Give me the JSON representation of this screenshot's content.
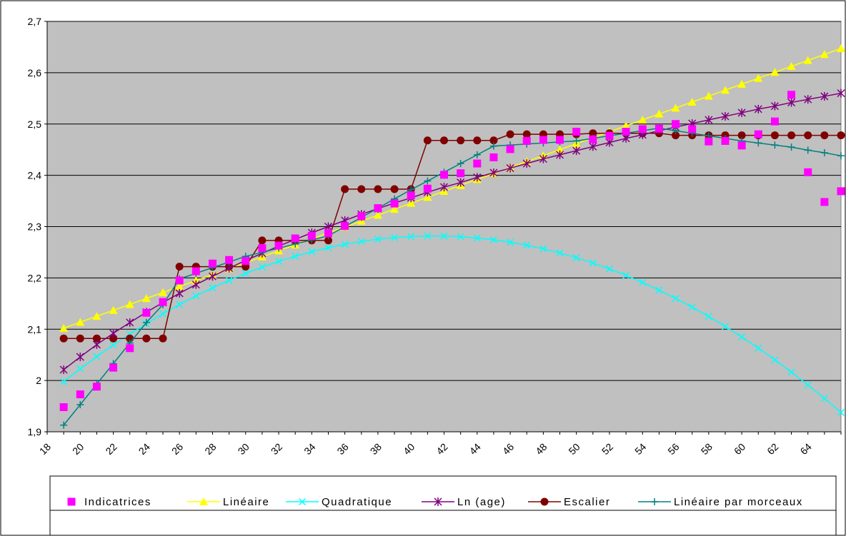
{
  "chart_data": {
    "type": "line",
    "title": "",
    "xlabel": "",
    "ylabel": "",
    "xlim": [
      18,
      66
    ],
    "ylim": [
      1.9,
      2.7
    ],
    "x_ticks": [
      18,
      20,
      22,
      24,
      26,
      28,
      30,
      32,
      34,
      36,
      38,
      40,
      42,
      44,
      46,
      48,
      50,
      52,
      54,
      56,
      58,
      60,
      62,
      64
    ],
    "x_tick_labels": [
      "18",
      "20",
      "22",
      "24",
      "26",
      "28",
      "30",
      "32",
      "34",
      "36",
      "38",
      "40",
      "42",
      "44",
      "46",
      "48",
      "50",
      "52",
      "54",
      "56",
      "58",
      "60",
      "62",
      "64"
    ],
    "y_ticks": [
      1.9,
      2.0,
      2.1,
      2.2,
      2.3,
      2.4,
      2.5,
      2.6,
      2.7
    ],
    "y_tick_labels": [
      "1,9",
      "2",
      "2,1",
      "2,2",
      "2,3",
      "2,4",
      "2,5",
      "2,6",
      "2,7"
    ],
    "plot_background": "#c0c0c0",
    "grid": "horizontal",
    "legend_position": "bottom",
    "x": [
      19,
      20,
      21,
      22,
      23,
      24,
      25,
      26,
      27,
      28,
      29,
      30,
      31,
      32,
      33,
      34,
      35,
      36,
      37,
      38,
      39,
      40,
      41,
      42,
      43,
      44,
      45,
      46,
      47,
      48,
      49,
      50,
      51,
      52,
      53,
      54,
      55,
      56,
      57,
      58,
      59,
      60,
      61,
      62,
      63,
      64,
      65,
      66
    ],
    "series": [
      {
        "name": "Indicatrices",
        "color": "#ff00ff",
        "marker": "square",
        "line": false,
        "values": [
          1.948,
          1.973,
          1.988,
          2.025,
          2.063,
          2.132,
          2.153,
          2.195,
          2.213,
          2.228,
          2.235,
          2.233,
          2.258,
          2.263,
          2.277,
          2.282,
          2.287,
          2.301,
          2.32,
          2.336,
          2.345,
          2.361,
          2.374,
          2.401,
          2.404,
          2.423,
          2.435,
          2.451,
          2.467,
          2.469,
          2.469,
          2.485,
          2.47,
          2.477,
          2.485,
          2.49,
          2.491,
          2.5,
          2.49,
          2.466,
          2.467,
          2.458,
          2.48,
          2.505,
          2.557,
          2.406,
          2.348,
          2.369
        ]
      },
      {
        "name": "Linéaire",
        "color": "#ffff00",
        "marker": "triangle",
        "line": true,
        "values": [
          2.102,
          2.1136,
          2.1252,
          2.1368,
          2.1484,
          2.16,
          2.1716,
          2.1832,
          2.1948,
          2.2064,
          2.218,
          2.2296,
          2.2412,
          2.2528,
          2.2644,
          2.276,
          2.2876,
          2.2992,
          2.3108,
          2.3224,
          2.334,
          2.3456,
          2.3572,
          2.3688,
          2.3804,
          2.392,
          2.4036,
          2.4152,
          2.4268,
          2.4384,
          2.45,
          2.4616,
          2.4732,
          2.4848,
          2.4964,
          2.508,
          2.5196,
          2.5312,
          2.5428,
          2.5544,
          2.566,
          2.5776,
          2.5892,
          2.6008,
          2.6124,
          2.624,
          2.6356,
          2.6472
        ]
      },
      {
        "name": "Quadratique",
        "color": "#00ffff",
        "marker": "x",
        "line": true,
        "values": [
          1.998,
          2.0229,
          2.0466,
          2.0692,
          2.0906,
          2.1109,
          2.1301,
          2.1481,
          2.1649,
          2.1806,
          2.1952,
          2.2087,
          2.221,
          2.2322,
          2.2422,
          2.2511,
          2.2589,
          2.2655,
          2.271,
          2.2754,
          2.2786,
          2.2807,
          2.2817,
          2.2815,
          2.2802,
          2.2778,
          2.2742,
          2.2695,
          2.2637,
          2.2567,
          2.2486,
          2.2394,
          2.229,
          2.2175,
          2.2049,
          2.1911,
          2.1762,
          2.1602,
          2.1431,
          2.1248,
          2.1054,
          2.0848,
          2.0632,
          2.0403,
          2.0164,
          1.9913,
          1.9651,
          1.9378
        ]
      },
      {
        "name": "Ln (age)",
        "color": "#800080",
        "marker": "asterisk",
        "line": true,
        "values": [
          2.021,
          2.046,
          2.07,
          2.092,
          2.113,
          2.133,
          2.152,
          2.17,
          2.187,
          2.203,
          2.219,
          2.234,
          2.248,
          2.262,
          2.275,
          2.288,
          2.3,
          2.312,
          2.324,
          2.335,
          2.346,
          2.356,
          2.367,
          2.377,
          2.386,
          2.396,
          2.405,
          2.414,
          2.423,
          2.432,
          2.44,
          2.448,
          2.456,
          2.464,
          2.472,
          2.479,
          2.487,
          2.494,
          2.501,
          2.508,
          2.515,
          2.522,
          2.529,
          2.535,
          2.542,
          2.548,
          2.554,
          2.56
        ]
      },
      {
        "name": "Escalier",
        "color": "#800000",
        "marker": "circle",
        "line": true,
        "values": [
          2.082,
          2.082,
          2.082,
          2.082,
          2.082,
          2.082,
          2.082,
          2.222,
          2.222,
          2.222,
          2.222,
          2.222,
          2.273,
          2.273,
          2.273,
          2.273,
          2.273,
          2.373,
          2.373,
          2.373,
          2.373,
          2.373,
          2.468,
          2.468,
          2.468,
          2.468,
          2.468,
          2.48,
          2.48,
          2.48,
          2.48,
          2.48,
          2.482,
          2.482,
          2.482,
          2.482,
          2.482,
          2.478,
          2.478,
          2.478,
          2.478,
          2.478,
          2.478,
          2.478,
          2.478,
          2.478,
          2.478,
          2.478
        ]
      },
      {
        "name": "Linéaire par morceaux",
        "color": "#008080",
        "marker": "plus",
        "line": true,
        "values": [
          1.913,
          1.953,
          1.993,
          2.033,
          2.073,
          2.113,
          2.148,
          2.198,
          2.209,
          2.22,
          2.231,
          2.242,
          2.25,
          2.258,
          2.266,
          2.274,
          2.282,
          2.3,
          2.318,
          2.336,
          2.354,
          2.372,
          2.389,
          2.406,
          2.423,
          2.44,
          2.457,
          2.459,
          2.461,
          2.463,
          2.465,
          2.467,
          2.472,
          2.477,
          2.482,
          2.487,
          2.492,
          2.487,
          2.482,
          2.477,
          2.472,
          2.467,
          2.463,
          2.459,
          2.455,
          2.449,
          2.444,
          2.438
        ]
      }
    ]
  }
}
